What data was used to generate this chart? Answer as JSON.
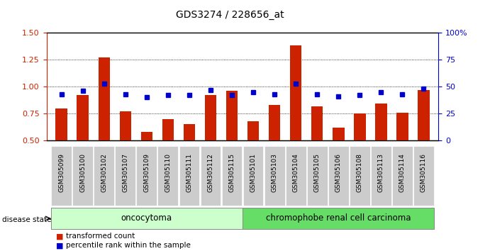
{
  "title": "GDS3274 / 228656_at",
  "samples": [
    "GSM305099",
    "GSM305100",
    "GSM305102",
    "GSM305107",
    "GSM305109",
    "GSM305110",
    "GSM305111",
    "GSM305112",
    "GSM305115",
    "GSM305101",
    "GSM305103",
    "GSM305104",
    "GSM305105",
    "GSM305106",
    "GSM305108",
    "GSM305113",
    "GSM305114",
    "GSM305116"
  ],
  "red_values": [
    0.8,
    0.92,
    1.27,
    0.77,
    0.58,
    0.7,
    0.65,
    0.92,
    0.96,
    0.68,
    0.83,
    1.38,
    0.82,
    0.62,
    0.75,
    0.84,
    0.76,
    0.97
  ],
  "blue_values_pct": [
    43,
    46,
    53,
    43,
    40,
    42,
    42,
    47,
    42,
    45,
    43,
    53,
    43,
    41,
    42,
    45,
    43,
    48
  ],
  "group1_label": "oncocytoma",
  "group1_count": 9,
  "group2_label": "chromophobe renal cell carcinoma",
  "group2_count": 9,
  "disease_state_label": "disease state",
  "legend_red": "transformed count",
  "legend_blue": "percentile rank within the sample",
  "ylim_left": [
    0.5,
    1.5
  ],
  "ylim_right": [
    0,
    100
  ],
  "yticks_left": [
    0.5,
    0.75,
    1.0,
    1.25,
    1.5
  ],
  "yticks_right": [
    0,
    25,
    50,
    75,
    100
  ],
  "bar_color": "#cc2200",
  "dot_color": "#0000cc",
  "group1_color": "#ccffcc",
  "group2_color": "#66dd66",
  "tickbox_color": "#cccccc"
}
